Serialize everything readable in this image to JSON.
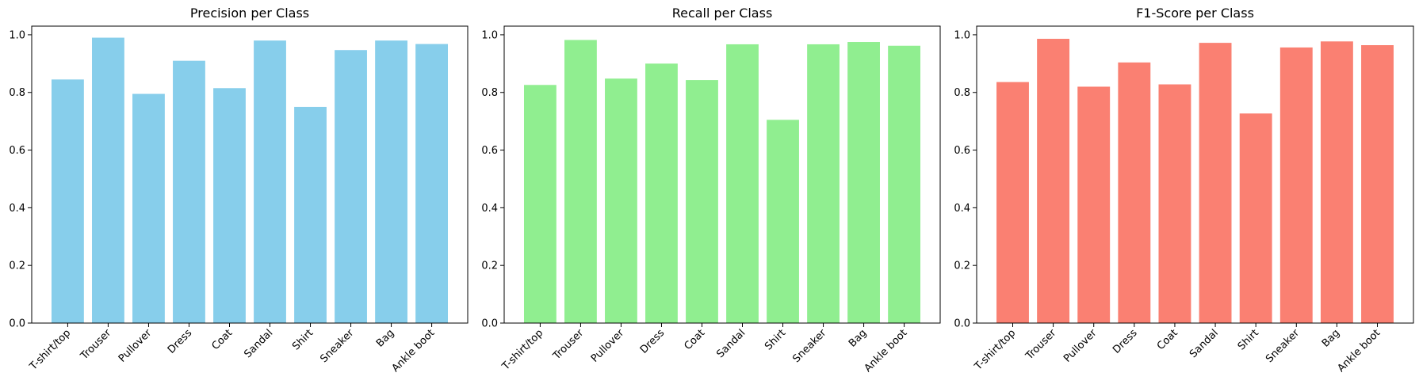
{
  "chart_data": [
    {
      "type": "bar",
      "title": "Precision per Class",
      "xlabel": "",
      "ylabel": "",
      "categories": [
        "T-shirt/top",
        "Trouser",
        "Pullover",
        "Dress",
        "Coat",
        "Sandal",
        "Shirt",
        "Sneaker",
        "Bag",
        "Ankle boot"
      ],
      "values": [
        0.845,
        0.99,
        0.795,
        0.91,
        0.815,
        0.98,
        0.75,
        0.947,
        0.98,
        0.968
      ],
      "color": "#87ceeb",
      "ylim": [
        0,
        1.03
      ],
      "yticks": [
        "0.0",
        "0.2",
        "0.4",
        "0.6",
        "0.8",
        "1.0"
      ],
      "grid": false
    },
    {
      "type": "bar",
      "title": "Recall per Class",
      "xlabel": "",
      "ylabel": "",
      "categories": [
        "T-shirt/top",
        "Trouser",
        "Pullover",
        "Dress",
        "Coat",
        "Sandal",
        "Shirt",
        "Sneaker",
        "Bag",
        "Ankle boot"
      ],
      "values": [
        0.826,
        0.982,
        0.848,
        0.9,
        0.843,
        0.967,
        0.705,
        0.967,
        0.975,
        0.962
      ],
      "color": "#90ee90",
      "ylim": [
        0,
        1.03
      ],
      "yticks": [
        "0.0",
        "0.2",
        "0.4",
        "0.6",
        "0.8",
        "1.0"
      ],
      "grid": false
    },
    {
      "type": "bar",
      "title": "F1-Score per Class",
      "xlabel": "",
      "ylabel": "",
      "categories": [
        "T-shirt/top",
        "Trouser",
        "Pullover",
        "Dress",
        "Coat",
        "Sandal",
        "Shirt",
        "Sneaker",
        "Bag",
        "Ankle boot"
      ],
      "values": [
        0.836,
        0.986,
        0.82,
        0.904,
        0.828,
        0.972,
        0.727,
        0.956,
        0.977,
        0.964
      ],
      "color": "#fa8072",
      "ylim": [
        0,
        1.03
      ],
      "yticks": [
        "0.0",
        "0.2",
        "0.4",
        "0.6",
        "0.8",
        "1.0"
      ],
      "grid": false
    }
  ]
}
